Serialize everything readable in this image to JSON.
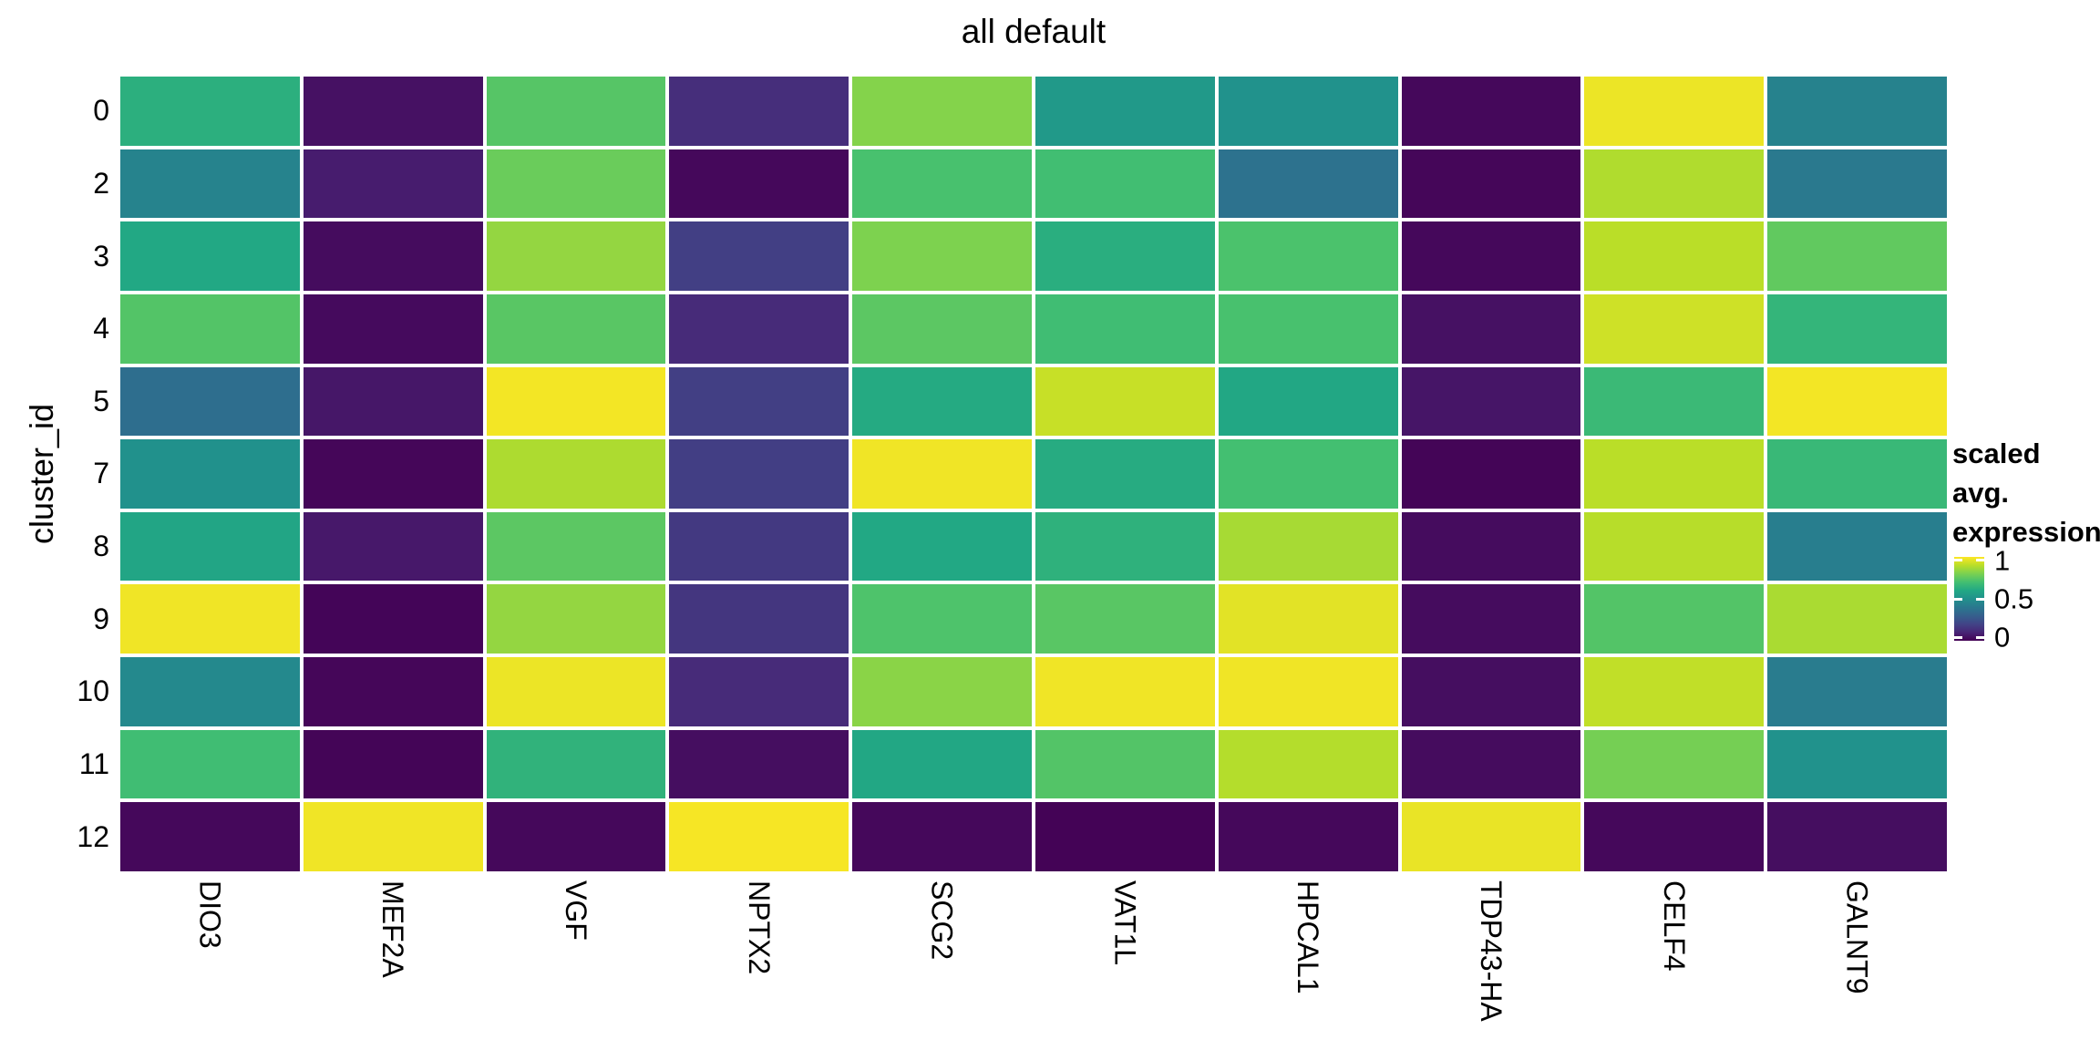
{
  "title": "all default",
  "y_axis": {
    "title": "cluster_id",
    "labels": [
      "0",
      "2",
      "3",
      "4",
      "5",
      "7",
      "8",
      "9",
      "10",
      "11",
      "12"
    ]
  },
  "x_axis": {
    "labels": [
      "DIO3",
      "MEF2A",
      "VGF",
      "NPTX2",
      "SCG2",
      "VAT1L",
      "HPCAL1",
      "TDP43-HA",
      "CELF4",
      "GALNT9"
    ]
  },
  "legend": {
    "title_lines": [
      "scaled avg.",
      "expression"
    ],
    "ticks": [
      {
        "label": "1",
        "pos": 0.04
      },
      {
        "label": "0.5",
        "pos": 0.5
      },
      {
        "label": "0",
        "pos": 0.96
      }
    ]
  },
  "chart_data": {
    "type": "heatmap",
    "title": "all default",
    "xlabel": "",
    "ylabel": "cluster_id",
    "x_categories": [
      "DIO3",
      "MEF2A",
      "VGF",
      "NPTX2",
      "SCG2",
      "VAT1L",
      "HPCAL1",
      "TDP43-HA",
      "CELF4",
      "GALNT9"
    ],
    "y_categories": [
      "0",
      "2",
      "3",
      "4",
      "5",
      "7",
      "8",
      "9",
      "10",
      "11",
      "12"
    ],
    "zlim": [
      0,
      1
    ],
    "legend_title": "scaled avg. expression",
    "legend_position": "right",
    "grid": false,
    "colorscale_name": "viridis",
    "colorscale_stops": [
      "#440154",
      "#482576",
      "#414487",
      "#35608d",
      "#2a788e",
      "#21918c",
      "#22a884",
      "#43bf71",
      "#7ad151",
      "#bade28",
      "#fde725"
    ],
    "values": [
      [
        0.63,
        0.045,
        0.735,
        0.13,
        0.815,
        0.535,
        0.505,
        0.02,
        0.975,
        0.44
      ],
      [
        0.445,
        0.075,
        0.77,
        0.02,
        0.71,
        0.695,
        0.375,
        0.015,
        0.885,
        0.405
      ],
      [
        0.6,
        0.03,
        0.84,
        0.185,
        0.805,
        0.625,
        0.715,
        0.02,
        0.9,
        0.755
      ],
      [
        0.73,
        0.025,
        0.74,
        0.12,
        0.745,
        0.69,
        0.71,
        0.045,
        0.93,
        0.655
      ],
      [
        0.36,
        0.06,
        0.985,
        0.185,
        0.61,
        0.92,
        0.595,
        0.055,
        0.675,
        0.985
      ],
      [
        0.5,
        0.015,
        0.88,
        0.18,
        0.98,
        0.615,
        0.7,
        0.01,
        0.9,
        0.67
      ],
      [
        0.585,
        0.065,
        0.745,
        0.165,
        0.6,
        0.64,
        0.87,
        0.03,
        0.895,
        0.425
      ],
      [
        0.98,
        0.012,
        0.84,
        0.155,
        0.72,
        0.74,
        0.96,
        0.03,
        0.73,
        0.875
      ],
      [
        0.47,
        0.015,
        0.975,
        0.12,
        0.825,
        0.98,
        0.98,
        0.035,
        0.91,
        0.415
      ],
      [
        0.69,
        0.01,
        0.645,
        0.035,
        0.595,
        0.73,
        0.89,
        0.03,
        0.79,
        0.505
      ],
      [
        0.02,
        0.98,
        0.02,
        0.99,
        0.02,
        0.005,
        0.02,
        0.97,
        0.02,
        0.035
      ]
    ]
  }
}
